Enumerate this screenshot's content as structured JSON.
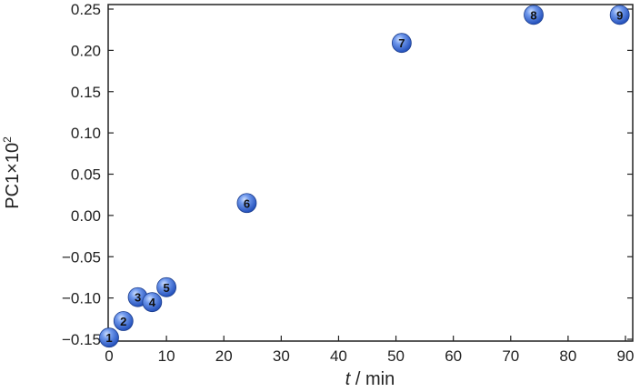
{
  "chart_data": {
    "type": "scatter",
    "title": "",
    "xlabel_italic": "t",
    "xlabel_rest": " / min",
    "ylabel_main": "PC1×10",
    "ylabel_sup": "2",
    "xlim": [
      0,
      90
    ],
    "ylim": [
      -0.15,
      0.25
    ],
    "x_ticks": [
      0,
      10,
      20,
      30,
      40,
      50,
      60,
      70,
      80,
      90
    ],
    "x_tick_labels": [
      "0",
      "10",
      "20",
      "30",
      "40",
      "50",
      "60",
      "70",
      "80",
      "90"
    ],
    "y_ticks": [
      -0.15,
      -0.1,
      -0.05,
      0.0,
      0.05,
      0.1,
      0.15,
      0.2,
      0.25
    ],
    "y_tick_labels": [
      "−0.15",
      "−0.10",
      "−0.05",
      "0.00",
      "0.05",
      "0.10",
      "0.15",
      "0.20",
      "0.25"
    ],
    "grid": false,
    "marker_color": "#3f6fd6",
    "points": [
      {
        "label": "1",
        "x": 0,
        "y": -0.148
      },
      {
        "label": "2",
        "x": 2.5,
        "y": -0.128
      },
      {
        "label": "3",
        "x": 5,
        "y": -0.099
      },
      {
        "label": "4",
        "x": 7.5,
        "y": -0.105
      },
      {
        "label": "5",
        "x": 10,
        "y": -0.087
      },
      {
        "label": "6",
        "x": 24,
        "y": 0.015
      },
      {
        "label": "7",
        "x": 51,
        "y": 0.209
      },
      {
        "label": "8",
        "x": 74,
        "y": 0.243
      },
      {
        "label": "9",
        "x": 89,
        "y": 0.243
      }
    ]
  }
}
